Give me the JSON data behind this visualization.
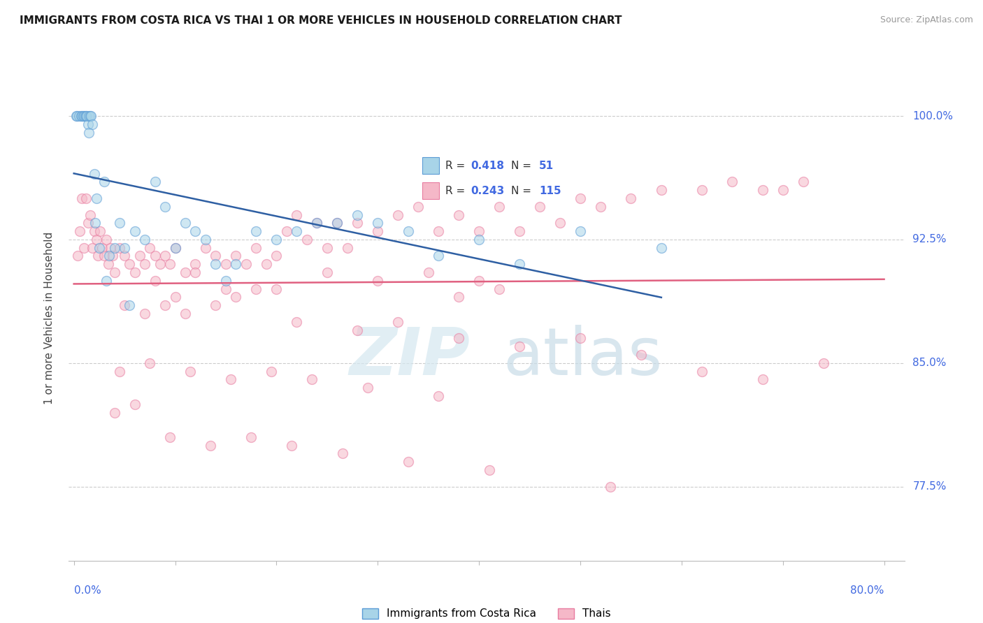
{
  "title": "IMMIGRANTS FROM COSTA RICA VS THAI 1 OR MORE VEHICLES IN HOUSEHOLD CORRELATION CHART",
  "source": "Source: ZipAtlas.com",
  "color_cr": "#a8d4e8",
  "color_cr_edge": "#5b9bd5",
  "color_cr_line": "#2e5fa3",
  "color_thai": "#f5b8c8",
  "color_thai_edge": "#e87ca0",
  "color_thai_line": "#e06080",
  "color_axis_labels": "#4169E1",
  "color_title": "#1a1a1a",
  "color_source": "#999999",
  "color_grid": "#cccccc",
  "color_legend_r": "#4169E1",
  "color_legend_n": "#333333",
  "dot_size": 100,
  "dot_alpha": 0.55,
  "ytick_vals": [
    100.0,
    92.5,
    85.0,
    77.5
  ],
  "ytick_labels": [
    "100.0%",
    "92.5%",
    "85.0%",
    "77.5%"
  ],
  "ymin": 73.0,
  "ymax": 102.5,
  "xmin": -0.5,
  "xmax": 82.0,
  "legend_label_cr": "Immigrants from Costa Rica",
  "legend_label_thai": "Thais",
  "cr_x": [
    0.2,
    0.3,
    0.5,
    0.7,
    0.8,
    0.9,
    1.0,
    1.1,
    1.2,
    1.3,
    1.4,
    1.5,
    1.5,
    1.6,
    1.7,
    1.8,
    2.0,
    2.1,
    2.2,
    2.5,
    3.0,
    3.2,
    3.5,
    4.0,
    4.5,
    5.0,
    5.5,
    6.0,
    7.0,
    8.0,
    9.0,
    10.0,
    11.0,
    12.0,
    13.0,
    14.0,
    15.0,
    16.0,
    18.0,
    20.0,
    22.0,
    24.0,
    26.0,
    28.0,
    30.0,
    33.0,
    36.0,
    40.0,
    44.0,
    50.0,
    58.0
  ],
  "cr_y": [
    100.0,
    100.0,
    100.0,
    100.0,
    100.0,
    100.0,
    100.0,
    100.0,
    100.0,
    100.0,
    99.5,
    100.0,
    99.0,
    100.0,
    100.0,
    99.5,
    96.5,
    93.5,
    95.0,
    92.0,
    96.0,
    90.0,
    91.5,
    92.0,
    93.5,
    92.0,
    88.5,
    93.0,
    92.5,
    96.0,
    94.5,
    92.0,
    93.5,
    93.0,
    92.5,
    91.0,
    90.0,
    91.0,
    93.0,
    92.5,
    93.0,
    93.5,
    93.5,
    94.0,
    93.5,
    93.0,
    91.5,
    92.5,
    91.0,
    93.0,
    92.0
  ],
  "thai_x": [
    0.4,
    0.6,
    0.8,
    1.0,
    1.2,
    1.4,
    1.6,
    1.8,
    2.0,
    2.2,
    2.4,
    2.6,
    2.8,
    3.0,
    3.2,
    3.4,
    3.6,
    3.8,
    4.0,
    4.5,
    5.0,
    5.5,
    6.0,
    6.5,
    7.0,
    7.5,
    8.0,
    8.5,
    9.0,
    9.5,
    10.0,
    11.0,
    12.0,
    13.0,
    14.0,
    15.0,
    16.0,
    17.0,
    18.0,
    19.0,
    20.0,
    21.0,
    22.0,
    23.0,
    24.0,
    25.0,
    26.0,
    27.0,
    28.0,
    30.0,
    32.0,
    34.0,
    36.0,
    38.0,
    40.0,
    42.0,
    44.0,
    46.0,
    48.0,
    50.0,
    52.0,
    55.0,
    58.0,
    62.0,
    65.0,
    68.0,
    70.0,
    72.0,
    38.0,
    42.0,
    10.0,
    15.0,
    20.0,
    8.0,
    12.0,
    18.0,
    25.0,
    30.0,
    35.0,
    40.0,
    5.0,
    7.0,
    9.0,
    11.0,
    14.0,
    16.0,
    22.0,
    28.0,
    32.0,
    38.0,
    44.0,
    50.0,
    56.0,
    62.0,
    68.0,
    74.0,
    4.0,
    6.0,
    9.5,
    13.5,
    17.5,
    21.5,
    26.5,
    33.0,
    41.0,
    53.0,
    4.5,
    7.5,
    11.5,
    15.5,
    19.5,
    23.5,
    29.0,
    36.0
  ],
  "thai_y": [
    91.5,
    93.0,
    95.0,
    92.0,
    95.0,
    93.5,
    94.0,
    92.0,
    93.0,
    92.5,
    91.5,
    93.0,
    92.0,
    91.5,
    92.5,
    91.0,
    92.0,
    91.5,
    90.5,
    92.0,
    91.5,
    91.0,
    90.5,
    91.5,
    91.0,
    92.0,
    91.5,
    91.0,
    91.5,
    91.0,
    92.0,
    90.5,
    91.0,
    92.0,
    91.5,
    91.0,
    91.5,
    91.0,
    92.0,
    91.0,
    91.5,
    93.0,
    94.0,
    92.5,
    93.5,
    92.0,
    93.5,
    92.0,
    93.5,
    93.0,
    94.0,
    94.5,
    93.0,
    94.0,
    93.0,
    94.5,
    93.0,
    94.5,
    93.5,
    95.0,
    94.5,
    95.0,
    95.5,
    95.5,
    96.0,
    95.5,
    95.5,
    96.0,
    89.0,
    89.5,
    89.0,
    89.5,
    89.5,
    90.0,
    90.5,
    89.5,
    90.5,
    90.0,
    90.5,
    90.0,
    88.5,
    88.0,
    88.5,
    88.0,
    88.5,
    89.0,
    87.5,
    87.0,
    87.5,
    86.5,
    86.0,
    86.5,
    85.5,
    84.5,
    84.0,
    85.0,
    82.0,
    82.5,
    80.5,
    80.0,
    80.5,
    80.0,
    79.5,
    79.0,
    78.5,
    77.5,
    84.5,
    85.0,
    84.5,
    84.0,
    84.5,
    84.0,
    83.5,
    83.0
  ]
}
